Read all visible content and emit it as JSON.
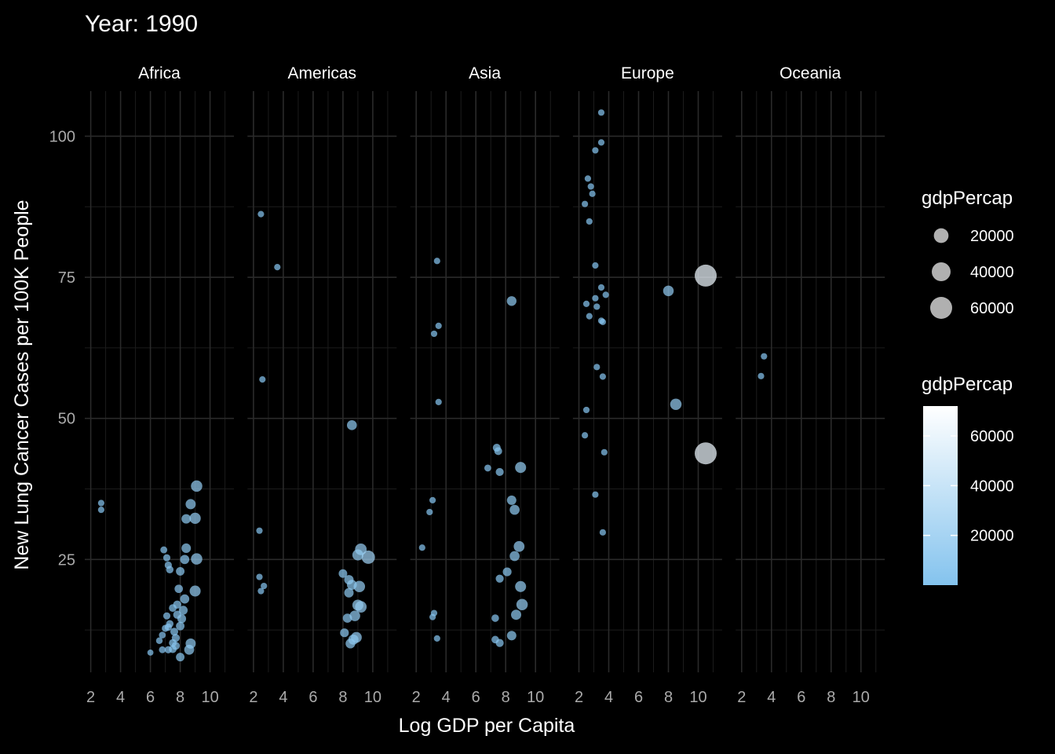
{
  "chart_data": {
    "type": "scatter",
    "title": "Year: 1990",
    "xlabel": "Log GDP per Capita",
    "ylabel": "New Lung Cancer Cases per 100K People",
    "facets": [
      "Africa",
      "Americas",
      "Asia",
      "Europe",
      "Oceania"
    ],
    "xlim": [
      1.6,
      11.6
    ],
    "ylim": [
      5,
      108
    ],
    "x_ticks": [
      2,
      4,
      6,
      8,
      10
    ],
    "y_ticks": [
      25,
      50,
      75,
      100
    ],
    "grid": true,
    "colors": {
      "background": "#000000",
      "point_low": "#8ec9f2",
      "point_high": "#ffffff",
      "size_legend_point": "#b0b0b0"
    },
    "legend_size": {
      "title": "gdpPercap",
      "values": [
        20000,
        40000,
        60000
      ],
      "labels": [
        "20000",
        "40000",
        "60000"
      ]
    },
    "legend_color": {
      "title": "gdpPercap",
      "range": [
        0,
        72000
      ],
      "ticks": [
        20000,
        40000,
        60000
      ],
      "labels": [
        "20000",
        "40000",
        "60000"
      ]
    },
    "series": [
      {
        "facet": "Africa",
        "points": [
          {
            "x": 2.7,
            "y": 35.0,
            "gdp": 600
          },
          {
            "x": 2.7,
            "y": 33.8,
            "gdp": 600
          },
          {
            "x": 9.1,
            "y": 38.0,
            "gdp": 9000
          },
          {
            "x": 8.7,
            "y": 34.8,
            "gdp": 6000
          },
          {
            "x": 8.4,
            "y": 32.2,
            "gdp": 4500
          },
          {
            "x": 9.0,
            "y": 32.3,
            "gdp": 8500
          },
          {
            "x": 8.4,
            "y": 27.0,
            "gdp": 4500
          },
          {
            "x": 9.1,
            "y": 25.1,
            "gdp": 9000
          },
          {
            "x": 8.3,
            "y": 25.0,
            "gdp": 4000
          },
          {
            "x": 6.9,
            "y": 26.7,
            "gdp": 1000
          },
          {
            "x": 7.1,
            "y": 25.3,
            "gdp": 1200
          },
          {
            "x": 7.2,
            "y": 24.0,
            "gdp": 1300
          },
          {
            "x": 7.3,
            "y": 23.2,
            "gdp": 1500
          },
          {
            "x": 8.0,
            "y": 22.9,
            "gdp": 3000
          },
          {
            "x": 7.9,
            "y": 19.8,
            "gdp": 2700
          },
          {
            "x": 9.0,
            "y": 19.4,
            "gdp": 8000
          },
          {
            "x": 8.3,
            "y": 18.0,
            "gdp": 4000
          },
          {
            "x": 7.8,
            "y": 17.0,
            "gdp": 2400
          },
          {
            "x": 7.5,
            "y": 16.4,
            "gdp": 1800
          },
          {
            "x": 8.2,
            "y": 16.0,
            "gdp": 3600
          },
          {
            "x": 7.1,
            "y": 15.0,
            "gdp": 1200
          },
          {
            "x": 7.8,
            "y": 15.2,
            "gdp": 2400
          },
          {
            "x": 8.1,
            "y": 14.5,
            "gdp": 3300
          },
          {
            "x": 7.3,
            "y": 13.6,
            "gdp": 1500
          },
          {
            "x": 7.0,
            "y": 12.8,
            "gdp": 1100
          },
          {
            "x": 7.2,
            "y": 13.0,
            "gdp": 1300
          },
          {
            "x": 8.0,
            "y": 13.2,
            "gdp": 3000
          },
          {
            "x": 7.6,
            "y": 12.2,
            "gdp": 2000
          },
          {
            "x": 6.8,
            "y": 11.6,
            "gdp": 900
          },
          {
            "x": 7.7,
            "y": 11.1,
            "gdp": 2200
          },
          {
            "x": 6.6,
            "y": 10.6,
            "gdp": 750
          },
          {
            "x": 7.5,
            "y": 10.2,
            "gdp": 1800
          },
          {
            "x": 8.7,
            "y": 10.1,
            "gdp": 6000
          },
          {
            "x": 7.7,
            "y": 9.7,
            "gdp": 2200
          },
          {
            "x": 6.8,
            "y": 9.0,
            "gdp": 900
          },
          {
            "x": 7.2,
            "y": 9.0,
            "gdp": 1300
          },
          {
            "x": 7.5,
            "y": 9.1,
            "gdp": 1800
          },
          {
            "x": 8.6,
            "y": 9.0,
            "gdp": 5500
          },
          {
            "x": 6.0,
            "y": 8.5,
            "gdp": 400
          },
          {
            "x": 8.0,
            "y": 7.7,
            "gdp": 3000
          }
        ]
      },
      {
        "facet": "Americas",
        "points": [
          {
            "x": 2.5,
            "y": 86.2,
            "gdp": 600
          },
          {
            "x": 3.6,
            "y": 76.8,
            "gdp": 600
          },
          {
            "x": 2.6,
            "y": 56.9,
            "gdp": 600
          },
          {
            "x": 8.6,
            "y": 48.8,
            "gdp": 5500
          },
          {
            "x": 2.4,
            "y": 30.1,
            "gdp": 600
          },
          {
            "x": 2.4,
            "y": 21.9,
            "gdp": 600
          },
          {
            "x": 2.7,
            "y": 20.3,
            "gdp": 600
          },
          {
            "x": 2.5,
            "y": 19.4,
            "gdp": 600
          },
          {
            "x": 9.2,
            "y": 26.8,
            "gdp": 9500
          },
          {
            "x": 9.0,
            "y": 25.8,
            "gdp": 8000
          },
          {
            "x": 9.7,
            "y": 25.4,
            "gdp": 15000
          },
          {
            "x": 8.0,
            "y": 22.5,
            "gdp": 3000
          },
          {
            "x": 8.4,
            "y": 21.4,
            "gdp": 4500
          },
          {
            "x": 9.1,
            "y": 20.2,
            "gdp": 9000
          },
          {
            "x": 8.6,
            "y": 20.5,
            "gdp": 5500
          },
          {
            "x": 8.4,
            "y": 19.1,
            "gdp": 4500
          },
          {
            "x": 9.0,
            "y": 16.9,
            "gdp": 8000
          },
          {
            "x": 9.2,
            "y": 16.6,
            "gdp": 9500
          },
          {
            "x": 8.3,
            "y": 14.6,
            "gdp": 4000
          },
          {
            "x": 8.8,
            "y": 15.0,
            "gdp": 7000
          },
          {
            "x": 8.1,
            "y": 12.0,
            "gdp": 3300
          },
          {
            "x": 8.9,
            "y": 11.2,
            "gdp": 7500
          },
          {
            "x": 8.7,
            "y": 10.8,
            "gdp": 6000
          },
          {
            "x": 8.5,
            "y": 10.1,
            "gdp": 5000
          }
        ]
      },
      {
        "facet": "Asia",
        "points": [
          {
            "x": 3.4,
            "y": 77.9,
            "gdp": 600
          },
          {
            "x": 8.4,
            "y": 70.8,
            "gdp": 5000
          },
          {
            "x": 3.5,
            "y": 66.4,
            "gdp": 600
          },
          {
            "x": 3.2,
            "y": 65.0,
            "gdp": 600
          },
          {
            "x": 3.5,
            "y": 52.9,
            "gdp": 600
          },
          {
            "x": 7.4,
            "y": 44.8,
            "gdp": 2000
          },
          {
            "x": 7.5,
            "y": 44.2,
            "gdp": 2000
          },
          {
            "x": 6.8,
            "y": 41.2,
            "gdp": 1000
          },
          {
            "x": 9.0,
            "y": 41.3,
            "gdp": 8000
          },
          {
            "x": 7.6,
            "y": 40.5,
            "gdp": 2200
          },
          {
            "x": 8.4,
            "y": 35.5,
            "gdp": 4500
          },
          {
            "x": 3.1,
            "y": 35.5,
            "gdp": 600
          },
          {
            "x": 8.6,
            "y": 33.8,
            "gdp": 5500
          },
          {
            "x": 2.9,
            "y": 33.4,
            "gdp": 600
          },
          {
            "x": 2.4,
            "y": 27.1,
            "gdp": 600
          },
          {
            "x": 8.9,
            "y": 27.3,
            "gdp": 7500
          },
          {
            "x": 8.6,
            "y": 25.6,
            "gdp": 5500
          },
          {
            "x": 8.1,
            "y": 22.8,
            "gdp": 3300
          },
          {
            "x": 7.6,
            "y": 21.6,
            "gdp": 2200
          },
          {
            "x": 9.0,
            "y": 20.2,
            "gdp": 8000
          },
          {
            "x": 9.1,
            "y": 17.0,
            "gdp": 9000
          },
          {
            "x": 8.7,
            "y": 15.2,
            "gdp": 6000
          },
          {
            "x": 3.2,
            "y": 15.5,
            "gdp": 600
          },
          {
            "x": 3.1,
            "y": 14.8,
            "gdp": 600
          },
          {
            "x": 7.3,
            "y": 14.6,
            "gdp": 1600
          },
          {
            "x": 8.4,
            "y": 11.5,
            "gdp": 4500
          },
          {
            "x": 3.4,
            "y": 11.0,
            "gdp": 600
          },
          {
            "x": 7.3,
            "y": 10.8,
            "gdp": 1600
          },
          {
            "x": 7.6,
            "y": 10.2,
            "gdp": 2200
          }
        ]
      },
      {
        "facet": "Europe",
        "points": [
          {
            "x": 3.5,
            "y": 104.2,
            "gdp": 600
          },
          {
            "x": 3.5,
            "y": 98.9,
            "gdp": 600
          },
          {
            "x": 3.1,
            "y": 97.5,
            "gdp": 600
          },
          {
            "x": 2.6,
            "y": 92.5,
            "gdp": 600
          },
          {
            "x": 2.8,
            "y": 91.1,
            "gdp": 600
          },
          {
            "x": 2.9,
            "y": 89.8,
            "gdp": 600
          },
          {
            "x": 2.4,
            "y": 88.0,
            "gdp": 600
          },
          {
            "x": 2.7,
            "y": 84.9,
            "gdp": 600
          },
          {
            "x": 3.1,
            "y": 77.1,
            "gdp": 600
          },
          {
            "x": 10.5,
            "y": 75.3,
            "gdp": 60000
          },
          {
            "x": 3.5,
            "y": 73.2,
            "gdp": 600
          },
          {
            "x": 8.0,
            "y": 72.6,
            "gdp": 7000
          },
          {
            "x": 3.8,
            "y": 71.9,
            "gdp": 600
          },
          {
            "x": 3.1,
            "y": 71.3,
            "gdp": 600
          },
          {
            "x": 2.5,
            "y": 70.3,
            "gdp": 600
          },
          {
            "x": 3.2,
            "y": 69.8,
            "gdp": 600
          },
          {
            "x": 2.7,
            "y": 68.1,
            "gdp": 600
          },
          {
            "x": 3.5,
            "y": 67.3,
            "gdp": 600
          },
          {
            "x": 3.6,
            "y": 67.1,
            "gdp": 600
          },
          {
            "x": 3.2,
            "y": 59.1,
            "gdp": 600
          },
          {
            "x": 3.6,
            "y": 57.4,
            "gdp": 600
          },
          {
            "x": 8.5,
            "y": 52.5,
            "gdp": 9000
          },
          {
            "x": 2.5,
            "y": 51.5,
            "gdp": 600
          },
          {
            "x": 2.4,
            "y": 47.0,
            "gdp": 600
          },
          {
            "x": 10.5,
            "y": 43.8,
            "gdp": 60000
          },
          {
            "x": 3.7,
            "y": 44.0,
            "gdp": 600
          },
          {
            "x": 3.1,
            "y": 36.5,
            "gdp": 600
          },
          {
            "x": 3.6,
            "y": 29.8,
            "gdp": 600
          }
        ]
      },
      {
        "facet": "Oceania",
        "points": [
          {
            "x": 3.5,
            "y": 61.0,
            "gdp": 600
          },
          {
            "x": 3.3,
            "y": 57.5,
            "gdp": 600
          }
        ]
      }
    ]
  }
}
